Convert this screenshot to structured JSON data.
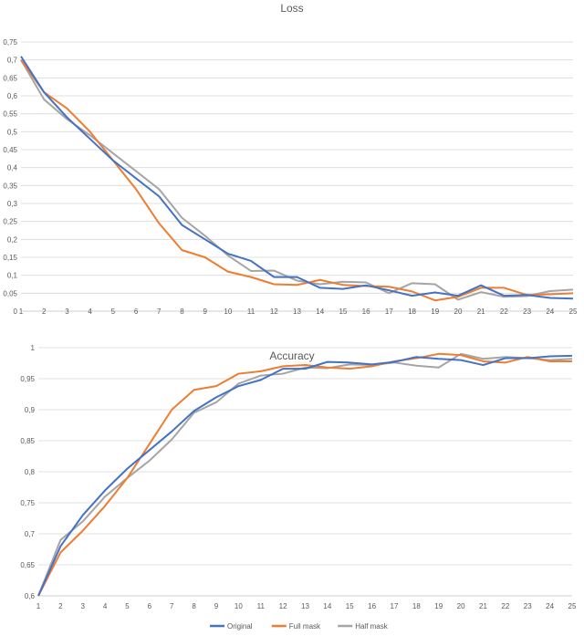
{
  "chart_data": [
    {
      "type": "line",
      "title": "Loss",
      "categories": [
        "1",
        "2",
        "3",
        "4",
        "5",
        "6",
        "7",
        "8",
        "9",
        "10",
        "11",
        "12",
        "13",
        "14",
        "15",
        "16",
        "17",
        "18",
        "19",
        "20",
        "21",
        "22",
        "23",
        "24",
        "25"
      ],
      "y_ticks": [
        "0",
        "0,05",
        "0,1",
        "0,15",
        "0,2",
        "0,25",
        "0,3",
        "0,35",
        "0,4",
        "0,45",
        "0,5",
        "0,55",
        "0,6",
        "0,65",
        "0,7",
        "0,75"
      ],
      "ylim": [
        0,
        0.75
      ],
      "grid": true,
      "legend_position": "bottom",
      "series": [
        {
          "name": "Original",
          "color": "#4472c4",
          "values": [
            0.71,
            0.61,
            0.54,
            0.48,
            0.42,
            0.37,
            0.32,
            0.24,
            0.2,
            0.16,
            0.14,
            0.095,
            0.095,
            0.065,
            0.062,
            0.072,
            0.058,
            0.043,
            0.052,
            0.043,
            0.072,
            0.043,
            0.045,
            0.037,
            0.035
          ]
        },
        {
          "name": "Full mask",
          "color": "#ed7d31",
          "values": [
            0.7,
            0.61,
            0.565,
            0.5,
            0.42,
            0.34,
            0.245,
            0.17,
            0.15,
            0.11,
            0.095,
            0.075,
            0.073,
            0.087,
            0.073,
            0.07,
            0.068,
            0.055,
            0.03,
            0.04,
            0.065,
            0.065,
            0.045,
            0.047,
            0.05
          ]
        },
        {
          "name": "Half mask",
          "color": "#a5a5a5",
          "values": [
            0.7,
            0.59,
            0.535,
            0.49,
            0.44,
            0.39,
            0.34,
            0.26,
            0.21,
            0.155,
            0.112,
            0.113,
            0.085,
            0.075,
            0.082,
            0.08,
            0.05,
            0.078,
            0.075,
            0.032,
            0.053,
            0.04,
            0.042,
            0.056,
            0.06
          ]
        }
      ]
    },
    {
      "type": "line",
      "title": "Accuracy",
      "categories": [
        "1",
        "2",
        "3",
        "4",
        "5",
        "6",
        "7",
        "8",
        "9",
        "10",
        "11",
        "12",
        "13",
        "14",
        "15",
        "16",
        "17",
        "18",
        "19",
        "20",
        "21",
        "22",
        "23",
        "24",
        "25"
      ],
      "y_ticks": [
        "0,6",
        "0,65",
        "0,7",
        "0,75",
        "0,8",
        "0,85",
        "0,9",
        "0,95",
        "1"
      ],
      "ylim": [
        0.6,
        1.0
      ],
      "grid": true,
      "legend_position": "bottom",
      "series": [
        {
          "name": "Original",
          "color": "#4472c4",
          "values": [
            0.6,
            0.68,
            0.73,
            0.77,
            0.805,
            0.835,
            0.865,
            0.898,
            0.92,
            0.938,
            0.948,
            0.966,
            0.966,
            0.977,
            0.976,
            0.973,
            0.977,
            0.985,
            0.982,
            0.98,
            0.972,
            0.983,
            0.983,
            0.986,
            0.987
          ]
        },
        {
          "name": "Full mask",
          "color": "#ed7d31",
          "values": [
            0.6,
            0.67,
            0.705,
            0.745,
            0.79,
            0.845,
            0.9,
            0.932,
            0.938,
            0.958,
            0.962,
            0.97,
            0.972,
            0.968,
            0.966,
            0.97,
            0.978,
            0.983,
            0.99,
            0.988,
            0.978,
            0.976,
            0.985,
            0.978,
            0.978
          ]
        },
        {
          "name": "Half mask",
          "color": "#a5a5a5",
          "values": [
            0.6,
            0.69,
            0.72,
            0.76,
            0.79,
            0.818,
            0.852,
            0.895,
            0.912,
            0.942,
            0.955,
            0.958,
            0.968,
            0.967,
            0.973,
            0.972,
            0.976,
            0.971,
            0.968,
            0.99,
            0.982,
            0.985,
            0.983,
            0.98,
            0.982
          ]
        }
      ]
    }
  ]
}
